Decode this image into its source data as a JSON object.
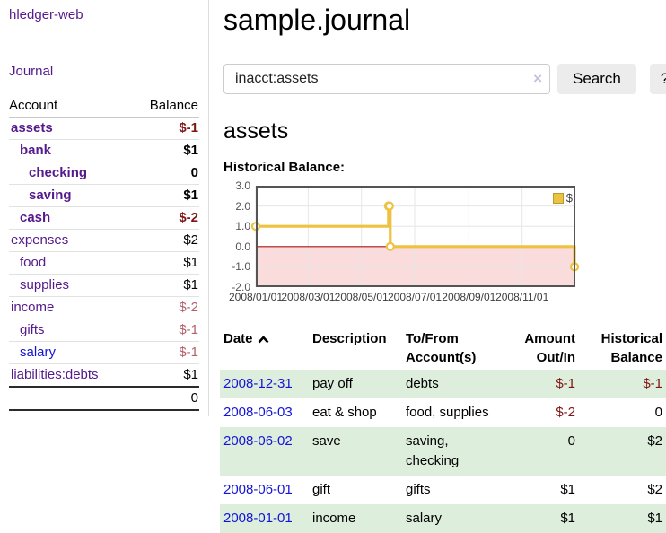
{
  "sidebar": {
    "app_title": "hledger-web",
    "journal_link": "Journal",
    "accounts_table": {
      "header_account": "Account",
      "header_balance": "Balance",
      "rows": [
        {
          "name": "assets",
          "indent": 1,
          "bold": true,
          "balance": "$-1",
          "neg": "strong",
          "link": "purple"
        },
        {
          "name": "bank",
          "indent": 2,
          "bold": true,
          "balance": "$1",
          "neg": "none",
          "link": "purple"
        },
        {
          "name": "checking",
          "indent": 3,
          "bold": true,
          "balance": "0",
          "neg": "none",
          "link": "purple"
        },
        {
          "name": "saving",
          "indent": 3,
          "bold": true,
          "balance": "$1",
          "neg": "none",
          "link": "purple"
        },
        {
          "name": "cash",
          "indent": 2,
          "bold": true,
          "balance": "$-2",
          "neg": "strong",
          "link": "purple"
        },
        {
          "name": "expenses",
          "indent": 1,
          "bold": false,
          "balance": "$2",
          "neg": "none",
          "link": "purple"
        },
        {
          "name": "food",
          "indent": 2,
          "bold": false,
          "balance": "$1",
          "neg": "none",
          "link": "purple"
        },
        {
          "name": "supplies",
          "indent": 2,
          "bold": false,
          "balance": "$1",
          "neg": "none",
          "link": "purple"
        },
        {
          "name": "income",
          "indent": 1,
          "bold": false,
          "balance": "$-2",
          "neg": "muted",
          "link": "purple"
        },
        {
          "name": "gifts",
          "indent": 2,
          "bold": false,
          "balance": "$-1",
          "neg": "muted",
          "link": "purple"
        },
        {
          "name": "salary",
          "indent": 2,
          "bold": false,
          "balance": "$-1",
          "neg": "muted",
          "link": "blue"
        },
        {
          "name": "liabilities:debts",
          "indent": 1,
          "bold": false,
          "balance": "$1",
          "neg": "none",
          "link": "purple"
        }
      ],
      "total": "0"
    }
  },
  "main": {
    "title": "sample.journal",
    "search": {
      "value": "inacct:assets",
      "clear_icon": "×",
      "search_button": "Search",
      "help_button": "?"
    },
    "account_heading": "assets",
    "chart_label": "Historical Balance:",
    "register_table": {
      "headers": {
        "date": "Date",
        "description": "Description",
        "tofrom_line1": "To/From",
        "tofrom_line2": "Account(s)",
        "amount_line1": "Amount",
        "amount_line2": "Out/In",
        "historical_line1": "Historical",
        "historical_line2": "Balance"
      },
      "rows": [
        {
          "date": "2008-12-31",
          "description": "pay off",
          "accounts": "debts",
          "amount": "$-1",
          "amount_neg": true,
          "historical": "$-1",
          "historical_neg": true,
          "shaded": true
        },
        {
          "date": "2008-06-03",
          "description": "eat & shop",
          "accounts": "food, supplies",
          "amount": "$-2",
          "amount_neg": true,
          "historical": "0",
          "historical_neg": false,
          "shaded": false
        },
        {
          "date": "2008-06-02",
          "description": "save",
          "accounts": "saving, checking",
          "amount": "0",
          "amount_neg": false,
          "historical": "$2",
          "historical_neg": false,
          "shaded": true
        },
        {
          "date": "2008-06-01",
          "description": "gift",
          "accounts": "gifts",
          "amount": "$1",
          "amount_neg": false,
          "historical": "$2",
          "historical_neg": false,
          "shaded": false
        },
        {
          "date": "2008-01-01",
          "description": "income",
          "accounts": "salary",
          "amount": "$1",
          "amount_neg": false,
          "historical": "$1",
          "historical_neg": false,
          "shaded": true
        }
      ]
    }
  },
  "chart_data": {
    "type": "line",
    "title": "Historical Balance",
    "step": true,
    "series": [
      {
        "name": "$",
        "color": "#edc240",
        "points": [
          [
            "2008-01-01",
            1
          ],
          [
            "2008-06-01",
            2
          ],
          [
            "2008-06-02",
            2
          ],
          [
            "2008-06-03",
            0
          ],
          [
            "2008-12-31",
            -1
          ]
        ]
      }
    ],
    "x_range": [
      "2008-01-01",
      "2009-01-01"
    ],
    "ylim": [
      -2,
      3
    ],
    "yticks": [
      3.0,
      2.0,
      1.0,
      0.0,
      -1.0,
      -2.0
    ],
    "xtick_labels": [
      "2008/01/01",
      "2008/03/01",
      "2008/05/01",
      "2008/07/01",
      "2008/09/01",
      "2008/11/01"
    ],
    "grid": true,
    "legend_position": "top-right",
    "negative_region_color": "#fbdcdc",
    "zero_line_color": "#a81414",
    "grid_color": "#e6e6e6",
    "border_color": "#545454"
  },
  "colors": {
    "purple_link": "#551a8b",
    "blue_link": "#1414d6",
    "negative_strong": "#801515",
    "negative_muted": "#b2606a",
    "row_shade_green": "#ddeedd",
    "series_gold": "#edc240"
  }
}
